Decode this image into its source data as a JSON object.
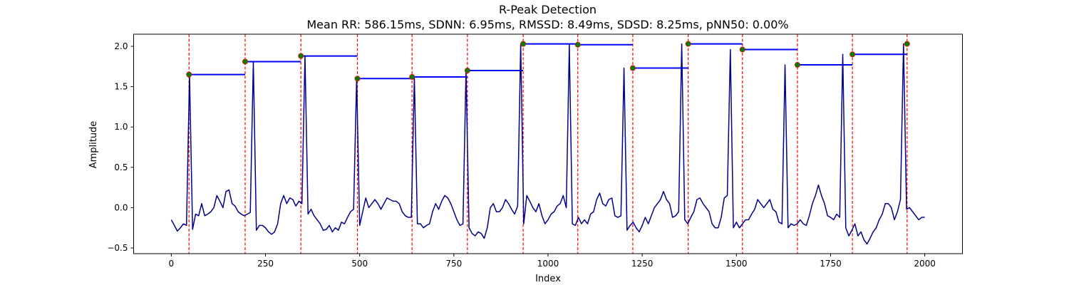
{
  "chart_data": {
    "type": "line",
    "title": "R-Peak Detection",
    "subtitle": "Mean RR: 586.15ms, SDNN: 6.95ms, RMSSD: 8.49ms, SDSD: 8.25ms, pNN50: 0.00%",
    "xlabel": "Index",
    "ylabel": "Amplitude",
    "xlim": [
      -100,
      2100
    ],
    "ylim": [
      -0.57,
      2.15
    ],
    "xticks": [
      0,
      250,
      500,
      750,
      1000,
      1250,
      1500,
      1750,
      2000
    ],
    "yticks": [
      -0.5,
      0.0,
      0.5,
      1.0,
      1.5,
      2.0
    ],
    "ytick_labels": [
      "−0.5",
      "0.0",
      "0.5",
      "1.0",
      "1.5",
      "2.0"
    ],
    "grid": false,
    "peaks": {
      "x": [
        47,
        196,
        344,
        494,
        639,
        786,
        934,
        1079,
        1225,
        1372,
        1516,
        1662,
        1808,
        1953
      ],
      "y": [
        1.65,
        1.81,
        1.88,
        1.6,
        1.62,
        1.7,
        2.03,
        2.02,
        1.73,
        2.03,
        1.96,
        1.77,
        1.9,
        2.03
      ]
    },
    "signal": {
      "x_start": 0,
      "x_end": 2000,
      "values": [
        -0.15,
        -0.22,
        -0.29,
        -0.25,
        -0.2,
        -0.22,
        1.65,
        -0.27,
        -0.08,
        -0.1,
        0.05,
        -0.1,
        -0.08,
        -0.05,
        0.0,
        0.15,
        0.08,
        0.0,
        0.2,
        0.22,
        0.05,
        0.02,
        -0.05,
        -0.08,
        -0.1,
        -0.08,
        -0.06,
        1.81,
        -0.28,
        -0.22,
        -0.22,
        -0.25,
        -0.3,
        -0.33,
        -0.3,
        -0.2,
        0.05,
        0.15,
        0.05,
        0.12,
        0.1,
        0.02,
        0.08,
        0.05,
        1.88,
        -0.08,
        -0.02,
        -0.1,
        -0.15,
        -0.2,
        -0.28,
        -0.27,
        -0.22,
        -0.3,
        -0.25,
        -0.28,
        -0.18,
        -0.2,
        -0.12,
        -0.05,
        -0.02,
        1.6,
        -0.22,
        -0.05,
        0.12,
        0.0,
        0.05,
        0.1,
        0.05,
        -0.02,
        0.05,
        0.12,
        0.1,
        0.08,
        0.08,
        0.05,
        -0.05,
        -0.1,
        -0.12,
        -0.12,
        1.62,
        -0.2,
        -0.2,
        -0.25,
        -0.22,
        -0.2,
        -0.05,
        0.05,
        -0.02,
        0.08,
        0.15,
        0.12,
        0.05,
        -0.05,
        -0.15,
        -0.22,
        -0.2,
        1.7,
        -0.25,
        -0.32,
        -0.35,
        -0.3,
        -0.32,
        -0.38,
        -0.25,
        0.0,
        0.05,
        -0.05,
        -0.05,
        0.0,
        0.1,
        0.05,
        -0.02,
        -0.08,
        0.02,
        2.03,
        -0.2,
        0.15,
        0.08,
        0.0,
        -0.05,
        0.05,
        -0.1,
        -0.2,
        -0.15,
        -0.08,
        -0.05,
        0.02,
        0.05,
        0.15,
        0.0,
        2.02,
        -0.2,
        -0.22,
        -0.12,
        -0.2,
        -0.15,
        -0.2,
        -0.08,
        -0.05,
        0.1,
        0.18,
        0.05,
        0.02,
        0.1,
        0.12,
        -0.1,
        -0.12,
        -0.1,
        1.73,
        -0.28,
        -0.22,
        -0.18,
        -0.25,
        -0.3,
        -0.22,
        -0.12,
        -0.2,
        -0.1,
        0.0,
        0.05,
        0.1,
        0.2,
        0.1,
        0.05,
        -0.12,
        -0.1,
        -0.05,
        2.03,
        -0.15,
        -0.2,
        -0.12,
        -0.05,
        0.1,
        0.12,
        0.05,
        0.0,
        -0.05,
        -0.2,
        -0.25,
        -0.25,
        -0.12,
        0.12,
        0.15,
        1.96,
        -0.25,
        -0.18,
        -0.25,
        -0.2,
        -0.15,
        -0.15,
        -0.08,
        -0.02,
        0.1,
        0.05,
        0.0,
        0.05,
        0.1,
        -0.02,
        -0.05,
        -0.18,
        -0.2,
        1.77,
        -0.25,
        -0.2,
        -0.22,
        -0.2,
        -0.15,
        -0.2,
        -0.22,
        -0.1,
        0.05,
        0.15,
        0.28,
        0.15,
        0.05,
        -0.1,
        -0.12,
        -0.15,
        -0.08,
        -0.12,
        1.9,
        -0.25,
        -0.35,
        -0.28,
        -0.2,
        -0.35,
        -0.3,
        -0.4,
        -0.45,
        -0.38,
        -0.3,
        -0.25,
        -0.15,
        -0.08,
        0.05,
        0.05,
        0.0,
        -0.15,
        -0.05,
        0.1,
        2.03,
        -0.02,
        0.0,
        -0.05,
        -0.1,
        -0.15,
        -0.12,
        -0.12
      ]
    },
    "colors": {
      "signal": "#00008b",
      "peak_marker": "#008000",
      "peak_marker_edge": "#ff0000",
      "vertical_lines": "#ff0000",
      "rr_segments": "#0000ff"
    }
  }
}
